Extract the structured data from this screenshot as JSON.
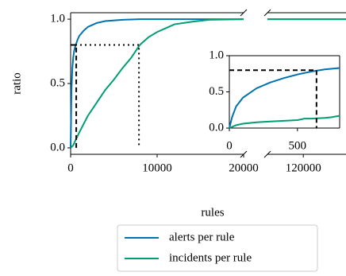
{
  "chart_data": [
    {
      "type": "line",
      "ylabel": "ratio",
      "xlabel": "rules",
      "xlim": [
        0,
        20000
      ],
      "xticks": [
        0,
        10000,
        20000
      ],
      "x2lim": [
        115800,
        125000
      ],
      "x2ticks": [
        120000
      ],
      "ylim": [
        -0.05,
        1.05
      ],
      "yticks": [
        {
          "value": 0,
          "label": "0.0"
        },
        {
          "value": 0.5,
          "label": "0.5"
        },
        {
          "value": 1,
          "label": "1.0"
        }
      ],
      "legend": "bottom",
      "series": [
        {
          "name": "alerts per rule",
          "color": "#0072b2",
          "x": [
            0,
            100,
            200,
            300,
            400,
            500,
            600,
            800,
            1000,
            1500,
            2000,
            3000,
            4000,
            6000,
            8000,
            12000,
            20000,
            null,
            115800,
            125000
          ],
          "values": [
            0,
            0.45,
            0.62,
            0.7,
            0.75,
            0.78,
            0.8,
            0.84,
            0.87,
            0.91,
            0.94,
            0.97,
            0.985,
            0.995,
            1,
            1,
            1,
            null,
            1,
            1
          ]
        },
        {
          "name": "incidents per rule",
          "color": "#009e73",
          "x": [
            0,
            300,
            500,
            1000,
            2000,
            3000,
            4000,
            5000,
            6000,
            7000,
            8000,
            9000,
            10000,
            11000,
            12000,
            14000,
            16000,
            20000,
            null,
            115800,
            125000
          ],
          "values": [
            0,
            0.02,
            0.05,
            0.12,
            0.25,
            0.35,
            0.45,
            0.53,
            0.62,
            0.7,
            0.8,
            0.86,
            0.9,
            0.93,
            0.96,
            0.98,
            0.995,
            1,
            null,
            1,
            1
          ]
        }
      ],
      "reference_lines": [
        {
          "style": "dashed",
          "x": [
            650,
            650,
            0
          ],
          "values": [
            0,
            0.8,
            0.8
          ]
        },
        {
          "style": "dotted",
          "x": [
            0,
            7900,
            7900
          ],
          "values": [
            0.8,
            0.8,
            0
          ]
        }
      ]
    },
    {
      "type": "line",
      "xlim": [
        0,
        810
      ],
      "xticks": [
        0,
        500
      ],
      "ylim": [
        0,
        1
      ],
      "yticks": [
        {
          "value": 0,
          "label": "0.0"
        },
        {
          "value": 0.5,
          "label": "0.5"
        },
        {
          "value": 1,
          "label": "1.0"
        }
      ],
      "series": [
        {
          "color": "#0072b2",
          "x": [
            0,
            20,
            50,
            100,
            200,
            300,
            400,
            500,
            600,
            700,
            810
          ],
          "values": [
            0,
            0.15,
            0.3,
            0.42,
            0.55,
            0.63,
            0.69,
            0.74,
            0.78,
            0.81,
            0.83
          ]
        },
        {
          "color": "#009e73",
          "x": [
            0,
            50,
            100,
            200,
            300,
            400,
            500,
            550,
            600,
            700,
            750,
            810
          ],
          "values": [
            0,
            0.04,
            0.06,
            0.08,
            0.09,
            0.1,
            0.11,
            0.13,
            0.13,
            0.14,
            0.15,
            0.17
          ]
        }
      ],
      "reference_lines": [
        {
          "style": "dashed",
          "x": [
            0,
            640,
            640
          ],
          "values": [
            0.8,
            0.8,
            0
          ]
        }
      ]
    }
  ]
}
